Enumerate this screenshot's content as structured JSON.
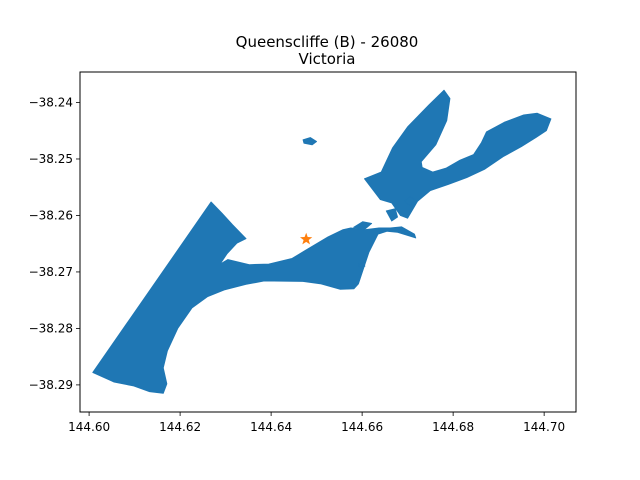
{
  "chart_data": {
    "type": "map",
    "title": "Queenscliffe (B) - 26080",
    "subtitle": "Victoria",
    "xlabel": "",
    "ylabel": "",
    "xlim": [
      144.598,
      144.707
    ],
    "ylim": [
      -38.2948,
      -38.2346
    ],
    "x_ticks": [
      144.6,
      144.62,
      144.64,
      144.66,
      144.68,
      144.7
    ],
    "x_tick_labels": [
      "144.60",
      "144.62",
      "144.64",
      "144.66",
      "144.68",
      "144.70"
    ],
    "y_ticks": [
      -38.24,
      -38.25,
      -38.26,
      -38.27,
      -38.28,
      -38.29
    ],
    "y_tick_labels": [
      "−38.24",
      "−38.25",
      "−38.26",
      "−38.27",
      "−38.28",
      "−38.29"
    ],
    "grid": false,
    "region_color": "#1f77b4",
    "marker": {
      "lon": 144.6477,
      "lat": -38.2642,
      "shape": "star",
      "color": "#ff7f0e"
    },
    "polygons": [
      {
        "name": "mainland",
        "coords": [
          [
            144.6008,
            -38.2878
          ],
          [
            144.6268,
            -38.2576
          ],
          [
            144.6292,
            -38.2596
          ],
          [
            144.6315,
            -38.2616
          ],
          [
            144.6345,
            -38.2641
          ],
          [
            144.6325,
            -38.2649
          ],
          [
            144.6303,
            -38.2668
          ],
          [
            144.6288,
            -38.2686
          ],
          [
            144.6305,
            -38.2678
          ],
          [
            144.6352,
            -38.2687
          ],
          [
            144.6395,
            -38.2686
          ],
          [
            144.6446,
            -38.2676
          ],
          [
            144.6473,
            -38.2663
          ],
          [
            144.6525,
            -38.2638
          ],
          [
            144.6558,
            -38.2625
          ],
          [
            144.6575,
            -38.2622
          ],
          [
            144.6606,
            -38.2625
          ],
          [
            144.6637,
            -38.2622
          ],
          [
            144.6662,
            -38.2622
          ],
          [
            144.6687,
            -38.262
          ],
          [
            144.6715,
            -38.2633
          ],
          [
            144.6718,
            -38.264
          ],
          [
            144.6678,
            -38.263
          ],
          [
            144.6655,
            -38.2628
          ],
          [
            144.6635,
            -38.2633
          ],
          [
            144.6615,
            -38.2665
          ],
          [
            144.6592,
            -38.2721
          ],
          [
            144.6582,
            -38.273
          ],
          [
            144.6552,
            -38.2731
          ],
          [
            144.6508,
            -38.2721
          ],
          [
            144.647,
            -38.2717
          ],
          [
            144.6385,
            -38.2716
          ],
          [
            144.6345,
            -38.2722
          ],
          [
            144.6297,
            -38.2732
          ],
          [
            144.626,
            -38.2744
          ],
          [
            144.6226,
            -38.2764
          ],
          [
            144.6195,
            -38.28
          ],
          [
            144.6172,
            -38.284
          ],
          [
            144.6163,
            -38.287
          ],
          [
            144.6171,
            -38.2898
          ],
          [
            144.6163,
            -38.2915
          ],
          [
            144.6133,
            -38.2912
          ],
          [
            144.6098,
            -38.2902
          ],
          [
            144.6055,
            -38.2895
          ],
          [
            144.6008,
            -38.2878
          ]
        ]
      },
      {
        "name": "swan-island",
        "coords": [
          [
            144.6605,
            -38.2535
          ],
          [
            144.6642,
            -38.2523
          ],
          [
            144.6667,
            -38.248
          ],
          [
            144.67,
            -38.2443
          ],
          [
            144.6747,
            -38.2404
          ],
          [
            144.678,
            -38.2378
          ],
          [
            144.6793,
            -38.2393
          ],
          [
            144.6786,
            -38.2432
          ],
          [
            144.6762,
            -38.2475
          ],
          [
            144.673,
            -38.2505
          ],
          [
            144.6732,
            -38.2515
          ],
          [
            144.6755,
            -38.2523
          ],
          [
            144.6785,
            -38.2516
          ],
          [
            144.6815,
            -38.2502
          ],
          [
            144.6845,
            -38.2492
          ],
          [
            144.6862,
            -38.2471
          ],
          [
            144.6873,
            -38.2452
          ],
          [
            144.6912,
            -38.2435
          ],
          [
            144.6955,
            -38.2422
          ],
          [
            144.6985,
            -38.2419
          ],
          [
            144.7015,
            -38.2429
          ],
          [
            144.7005,
            -38.245
          ],
          [
            144.6982,
            -38.2462
          ],
          [
            144.695,
            -38.2478
          ],
          [
            144.691,
            -38.2496
          ],
          [
            144.687,
            -38.2518
          ],
          [
            144.683,
            -38.2533
          ],
          [
            144.679,
            -38.2545
          ],
          [
            144.675,
            -38.2556
          ],
          [
            144.6722,
            -38.2575
          ],
          [
            144.67,
            -38.2605
          ],
          [
            144.6684,
            -38.26
          ],
          [
            144.6665,
            -38.2578
          ],
          [
            144.664,
            -38.2572
          ],
          [
            144.6605,
            -38.2535
          ]
        ]
      },
      {
        "name": "islet-1",
        "coords": [
          [
            144.647,
            -38.2466
          ],
          [
            144.6486,
            -38.2462
          ],
          [
            144.65,
            -38.2469
          ],
          [
            144.649,
            -38.2475
          ],
          [
            144.6472,
            -38.2472
          ],
          [
            144.647,
            -38.2466
          ]
        ]
      },
      {
        "name": "islet-2",
        "coords": [
          [
            144.6581,
            -38.2621
          ],
          [
            144.6601,
            -38.2611
          ],
          [
            144.6621,
            -38.2614
          ],
          [
            144.6604,
            -38.2626
          ],
          [
            144.6581,
            -38.2621
          ]
        ]
      },
      {
        "name": "islet-3",
        "coords": [
          [
            144.6653,
            -38.2592
          ],
          [
            144.6673,
            -38.2588
          ],
          [
            144.6678,
            -38.2603
          ],
          [
            144.6665,
            -38.261
          ],
          [
            144.6653,
            -38.2592
          ]
        ]
      },
      {
        "name": "islet-4",
        "coords": [
          [
            144.6693,
            -38.2575
          ],
          [
            144.6705,
            -38.2567
          ],
          [
            144.6716,
            -38.2572
          ],
          [
            144.6706,
            -38.2583
          ],
          [
            144.6693,
            -38.2575
          ]
        ]
      },
      {
        "name": "islet-5",
        "coords": [
          [
            144.6592,
            -38.2686
          ],
          [
            144.6604,
            -38.2683
          ],
          [
            144.6606,
            -38.269
          ],
          [
            144.6595,
            -38.2693
          ],
          [
            144.6592,
            -38.2686
          ]
        ]
      }
    ]
  }
}
